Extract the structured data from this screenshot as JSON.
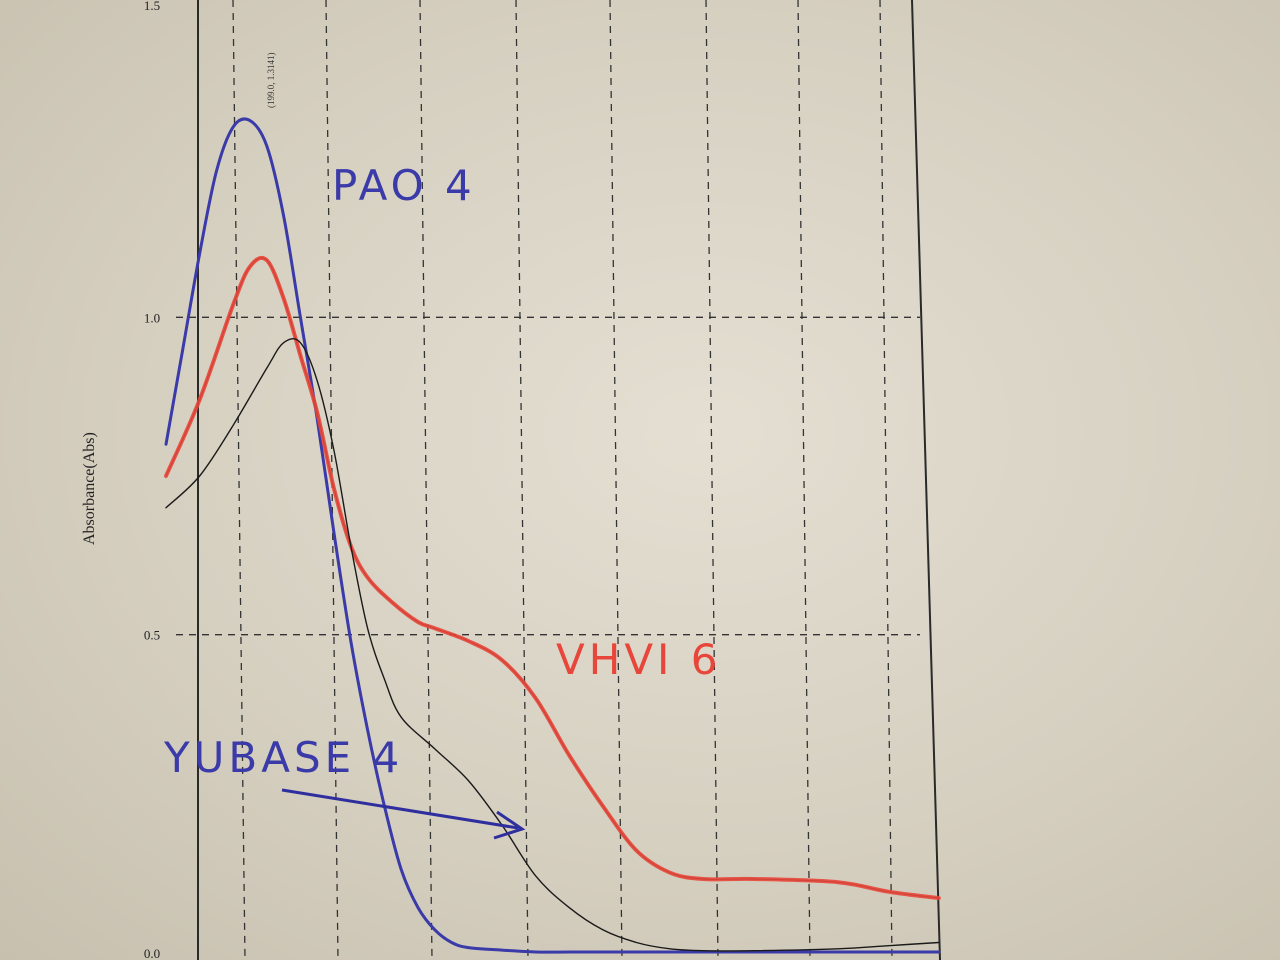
{
  "chart_data": {
    "type": "line",
    "ylabel": "Absorbance(Abs)",
    "ylim": [
      0.0,
      1.5
    ],
    "y_ticks": [
      "0.0",
      "0.5",
      "1.0",
      "1.5"
    ],
    "peak_annotation": "(199.0, 1.3141)",
    "grid": true,
    "series": [
      {
        "name": "PAO 4",
        "color": "#3a3aa8",
        "x": [
          0,
          0.1,
          0.2,
          0.3,
          0.4,
          0.5,
          0.6,
          0.7,
          0.8,
          0.9,
          1.0,
          1.1,
          1.2,
          1.3,
          1.4,
          1.5,
          1.6,
          1.7,
          1.8,
          2.0,
          2.2,
          2.4,
          2.6,
          2.8,
          3.0,
          3.5,
          4.0,
          4.6
        ],
        "y": [
          0.8,
          0.95,
          1.1,
          1.23,
          1.3,
          1.31,
          1.27,
          1.16,
          1.0,
          0.84,
          0.66,
          0.49,
          0.35,
          0.23,
          0.13,
          0.07,
          0.035,
          0.015,
          0.007,
          0.003,
          0.0,
          0.0,
          0.0,
          0.0,
          0.0,
          0.0,
          0.0,
          0.0
        ]
      },
      {
        "name": "VHVI 6",
        "color": "#e8463a",
        "x": [
          0,
          0.2,
          0.4,
          0.5,
          0.6,
          0.7,
          0.8,
          0.9,
          1.0,
          1.1,
          1.2,
          1.35,
          1.5,
          1.6,
          1.8,
          2.0,
          2.2,
          2.4,
          2.6,
          2.8,
          3.0,
          3.2,
          3.5,
          4.0,
          4.3,
          4.6
        ],
        "y": [
          0.75,
          0.87,
          1.02,
          1.08,
          1.09,
          1.03,
          0.94,
          0.85,
          0.73,
          0.64,
          0.59,
          0.55,
          0.52,
          0.51,
          0.49,
          0.46,
          0.4,
          0.31,
          0.23,
          0.16,
          0.125,
          0.115,
          0.115,
          0.11,
          0.095,
          0.085
        ]
      },
      {
        "name": "YUBASE 4",
        "color": "#1a1a1a",
        "x": [
          0,
          0.2,
          0.4,
          0.6,
          0.7,
          0.8,
          0.9,
          1.0,
          1.1,
          1.2,
          1.3,
          1.4,
          1.6,
          1.8,
          2.0,
          2.2,
          2.4,
          2.6,
          2.8,
          3.0,
          3.2,
          3.5,
          4.0,
          4.3,
          4.6
        ],
        "y": [
          0.7,
          0.75,
          0.83,
          0.92,
          0.96,
          0.96,
          0.9,
          0.79,
          0.64,
          0.51,
          0.43,
          0.37,
          0.32,
          0.27,
          0.2,
          0.12,
          0.07,
          0.035,
          0.015,
          0.005,
          0.002,
          0.002,
          0.005,
          0.01,
          0.015
        ]
      }
    ],
    "handwritten_labels": [
      "PAO 4",
      "VHVI 6",
      "YUBASE 4"
    ]
  }
}
